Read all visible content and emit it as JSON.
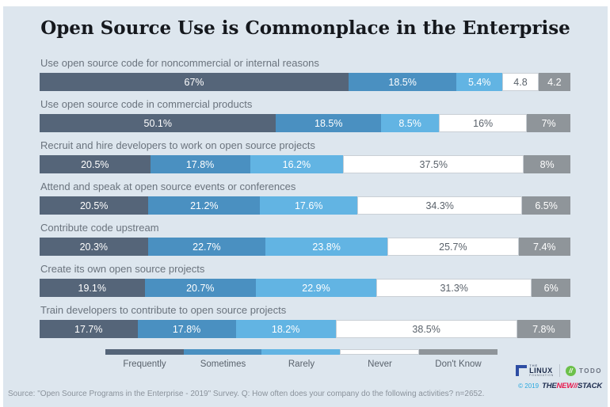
{
  "colors": {
    "frequently": "#556579",
    "sometimes": "#4a90c1",
    "rarely": "#62b4e3",
    "never": "#ffffff",
    "dont_know": "#8f959a",
    "background": "#dde6ee",
    "lf_blue": "#2d4da3",
    "todo_green": "#6cc04a",
    "brand_navy": "#1d2c4f",
    "brand_red": "#e8174c",
    "copyright_blue": "#29a8df"
  },
  "chart_data": {
    "type": "bar",
    "stacked": true,
    "orientation": "horizontal",
    "unit": "%",
    "title": "Open Source Use is Commonplace in the Enterprise",
    "legend_position": "bottom",
    "grid": false,
    "xlim": [
      0,
      100
    ],
    "categories": [
      "Use open source code for noncommercial or internal reasons",
      "Use open source code in commercial products",
      "Recruit and hire developers to work on open source projects",
      "Attend and speak at open source events or conferences",
      "Contribute code upstream",
      "Create its own open source projects",
      "Train developers to contribute to open source projects"
    ],
    "series": [
      {
        "name": "Frequently",
        "key": "frequently",
        "values": [
          67,
          50.1,
          20.5,
          20.5,
          20.3,
          19.1,
          17.7
        ],
        "labels": [
          "67%",
          "50.1%",
          "20.5%",
          "20.5%",
          "20.3%",
          "19.1%",
          "17.7%"
        ]
      },
      {
        "name": "Sometimes",
        "key": "sometimes",
        "values": [
          18.5,
          18.5,
          17.8,
          21.2,
          22.7,
          20.7,
          17.8
        ],
        "labels": [
          "18.5%",
          "18.5%",
          "17.8%",
          "21.2%",
          "22.7%",
          "20.7%",
          "17.8%"
        ]
      },
      {
        "name": "Rarely",
        "key": "rarely",
        "values": [
          5.4,
          8.5,
          16.2,
          17.6,
          23.8,
          22.9,
          18.2
        ],
        "labels": [
          "5.4%",
          "8.5%",
          "16.2%",
          "17.6%",
          "23.8%",
          "22.9%",
          "18.2%"
        ]
      },
      {
        "name": "Never",
        "key": "never",
        "values": [
          4.8,
          16,
          37.5,
          34.3,
          25.7,
          31.3,
          38.5
        ],
        "labels": [
          "4.8",
          "16%",
          "37.5%",
          "34.3%",
          "25.7%",
          "31.3%",
          "38.5%"
        ]
      },
      {
        "name": "Don't Know",
        "key": "dont_know",
        "values": [
          4.2,
          7,
          8,
          6.5,
          7.4,
          6,
          7.8
        ],
        "labels": [
          "4.2",
          "7%",
          "8%",
          "6.5%",
          "7.4%",
          "6%",
          "7.8%"
        ]
      }
    ]
  },
  "footer": {
    "source": "Source: \"Open Source Programs in the Enterprise - 2019\" Survey. Q: How often does your company do the following activities? n=2652.",
    "linux": {
      "top": "THE",
      "main": "LINUX",
      "sub": "FOUNDATION"
    },
    "todo": {
      "slashes": "//",
      "label": "TODO"
    },
    "newstack": {
      "copyright": "© 2019",
      "the": "THE",
      "new": "NEW",
      "slashes": "//",
      "stack": "STACK"
    }
  }
}
